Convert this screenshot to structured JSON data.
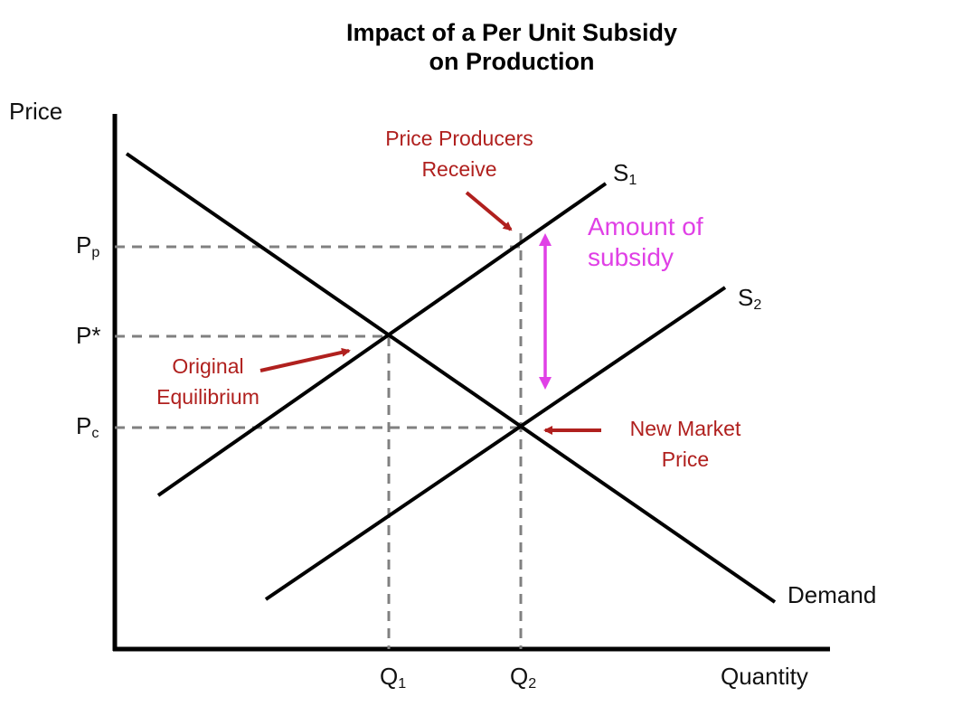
{
  "title_line1": "Impact of a Per Unit Subsidy",
  "title_line2": "on Production",
  "axis": {
    "y_label": "Price",
    "x_label": "Quantity"
  },
  "price_levels": {
    "pp": {
      "main": "P",
      "sub": "p"
    },
    "pstar": {
      "main": "P*"
    },
    "pc": {
      "main": "P",
      "sub": "c"
    }
  },
  "quantity_levels": {
    "q1": {
      "main": "Q",
      "sub": "1"
    },
    "q2": {
      "main": "Q",
      "sub": "2"
    }
  },
  "curves": {
    "s1": {
      "main": "S",
      "sub": "1"
    },
    "s2": {
      "main": "S",
      "sub": "2"
    },
    "demand": "Demand"
  },
  "annotations": {
    "producers_line1": "Price Producers",
    "producers_line2": "Receive",
    "subsidy_line1": "Amount of",
    "subsidy_line2": "subsidy",
    "original_line1": "Original",
    "original_line2": "Equilibrium",
    "newmarket_line1": "New Market",
    "newmarket_line2": "Price"
  },
  "colors": {
    "axes": "#000000",
    "guides": "#808080",
    "annotation": "#b0201e",
    "subsidy": "#e040e6"
  }
}
